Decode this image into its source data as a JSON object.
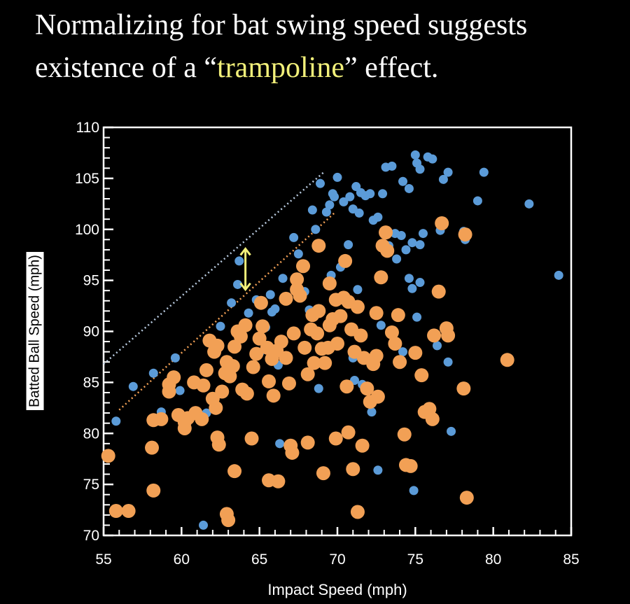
{
  "title": {
    "line1": "Normalizing for bat swing speed suggests",
    "line2_prefix": "existence of a “",
    "line2_highlight": "trampoline",
    "line2_suffix": "” effect."
  },
  "colors": {
    "background": "#000000",
    "highlight_text": "#f2f07a",
    "blue_points": "#5b9bd8",
    "orange_points": "#f2a055",
    "arrow": "#f2f07a"
  },
  "chart_data": {
    "type": "scatter",
    "xlabel": "Impact Speed (mph)",
    "ylabel": "Batted Ball Speed (mph)",
    "xlim": [
      55,
      85
    ],
    "ylim": [
      70,
      110
    ],
    "x_ticks": [
      "55",
      "60",
      "65",
      "70",
      "75",
      "80",
      "85"
    ],
    "y_ticks": [
      "70",
      "75",
      "80",
      "85",
      "90",
      "95",
      "100",
      "105",
      "110"
    ],
    "grid": false,
    "legend": "none",
    "series": [
      {
        "color": "#5b9bd8",
        "points": [
          [
            55.8,
            81.2
          ],
          [
            56.9,
            84.6
          ],
          [
            58.7,
            82.1
          ],
          [
            58.2,
            85.9
          ],
          [
            59.6,
            87.4
          ],
          [
            59.9,
            84.2
          ],
          [
            61.6,
            82.0
          ],
          [
            61.4,
            71.0
          ],
          [
            62.5,
            90.5
          ],
          [
            63.2,
            92.8
          ],
          [
            63.6,
            94.6
          ],
          [
            63.7,
            96.9
          ],
          [
            64.3,
            91.8
          ],
          [
            64.8,
            93.1
          ],
          [
            65.0,
            87.9
          ],
          [
            65.4,
            90.4
          ],
          [
            65.8,
            91.9
          ],
          [
            66.0,
            92.2
          ],
          [
            65.7,
            93.6
          ],
          [
            66.5,
            95.2
          ],
          [
            66.2,
            86.7
          ],
          [
            66.3,
            79.0
          ],
          [
            67.2,
            99.2
          ],
          [
            67.5,
            97.6
          ],
          [
            67.9,
            93.9
          ],
          [
            68.2,
            92.1
          ],
          [
            68.6,
            100.0
          ],
          [
            68.4,
            101.9
          ],
          [
            68.9,
            104.5
          ],
          [
            69.3,
            101.7
          ],
          [
            69.5,
            102.4
          ],
          [
            69.7,
            103.5
          ],
          [
            70.0,
            105.1
          ],
          [
            69.8,
            103.2
          ],
          [
            70.4,
            102.7
          ],
          [
            70.8,
            103.2
          ],
          [
            71.0,
            102.0
          ],
          [
            71.2,
            104.2
          ],
          [
            71.5,
            103.6
          ],
          [
            71.8,
            103.3
          ],
          [
            72.1,
            103.5
          ],
          [
            71.4,
            101.6
          ],
          [
            72.3,
            100.9
          ],
          [
            72.6,
            101.2
          ],
          [
            72.9,
            103.5
          ],
          [
            73.1,
            106.1
          ],
          [
            73.5,
            106.2
          ],
          [
            73.3,
            98.4
          ],
          [
            73.7,
            99.6
          ],
          [
            74.1,
            99.4
          ],
          [
            74.4,
            98.0
          ],
          [
            74.8,
            98.7
          ],
          [
            75.3,
            98.5
          ],
          [
            74.2,
            104.7
          ],
          [
            74.6,
            104.0
          ],
          [
            75.0,
            107.3
          ],
          [
            75.1,
            106.5
          ],
          [
            75.3,
            105.9
          ],
          [
            75.5,
            99.6
          ],
          [
            75.8,
            107.1
          ],
          [
            76.1,
            106.9
          ],
          [
            76.6,
            99.9
          ],
          [
            76.8,
            104.9
          ],
          [
            77.1,
            105.6
          ],
          [
            78.1,
            99.8
          ],
          [
            78.2,
            99.0
          ],
          [
            79.0,
            102.8
          ],
          [
            79.4,
            105.6
          ],
          [
            82.3,
            102.5
          ],
          [
            84.2,
            95.5
          ],
          [
            73.8,
            97.1
          ],
          [
            74.6,
            95.2
          ],
          [
            74.8,
            94.2
          ],
          [
            75.1,
            91.4
          ],
          [
            75.3,
            94.8
          ],
          [
            74.2,
            88.0
          ],
          [
            72.8,
            90.6
          ],
          [
            71.3,
            94.1
          ],
          [
            71.0,
            87.4
          ],
          [
            71.1,
            85.2
          ],
          [
            71.6,
            84.8
          ],
          [
            72.2,
            82.1
          ],
          [
            72.6,
            76.4
          ],
          [
            74.9,
            74.4
          ],
          [
            76.4,
            88.6
          ],
          [
            77.1,
            87.0
          ],
          [
            77.3,
            80.2
          ],
          [
            68.8,
            84.4
          ],
          [
            69.6,
            95.5
          ],
          [
            70.2,
            96.3
          ],
          [
            70.7,
            98.5
          ]
        ]
      },
      {
        "color": "#f2a055",
        "points": [
          [
            55.3,
            77.8
          ],
          [
            55.8,
            72.4
          ],
          [
            56.6,
            72.4
          ],
          [
            58.1,
            78.6
          ],
          [
            58.2,
            74.4
          ],
          [
            58.7,
            81.4
          ],
          [
            59.2,
            84.8
          ],
          [
            59.5,
            85.5
          ],
          [
            59.8,
            81.8
          ],
          [
            60.2,
            80.5
          ],
          [
            60.4,
            81.5
          ],
          [
            60.9,
            82.0
          ],
          [
            61.3,
            81.4
          ],
          [
            60.8,
            85.0
          ],
          [
            61.4,
            84.7
          ],
          [
            61.6,
            86.2
          ],
          [
            62.1,
            88.0
          ],
          [
            62.0,
            83.4
          ],
          [
            62.2,
            82.5
          ],
          [
            62.3,
            79.6
          ],
          [
            62.4,
            78.9
          ],
          [
            62.6,
            84.1
          ],
          [
            62.8,
            85.9
          ],
          [
            62.9,
            87.0
          ],
          [
            63.0,
            86.3
          ],
          [
            63.1,
            85.6
          ],
          [
            63.3,
            86.6
          ],
          [
            63.4,
            88.5
          ],
          [
            63.6,
            90.0
          ],
          [
            63.8,
            89.5
          ],
          [
            63.9,
            84.3
          ],
          [
            64.2,
            83.9
          ],
          [
            63.0,
            71.5
          ],
          [
            62.9,
            72.1
          ],
          [
            63.4,
            76.3
          ],
          [
            64.5,
            79.5
          ],
          [
            64.8,
            87.8
          ],
          [
            65.0,
            89.3
          ],
          [
            65.2,
            90.5
          ],
          [
            65.5,
            88.4
          ],
          [
            65.6,
            85.1
          ],
          [
            65.1,
            92.8
          ],
          [
            65.8,
            87.3
          ],
          [
            66.1,
            88.1
          ],
          [
            66.4,
            89.0
          ],
          [
            66.7,
            87.4
          ],
          [
            66.9,
            84.9
          ],
          [
            66.2,
            75.3
          ],
          [
            67.2,
            89.8
          ],
          [
            67.4,
            94.1
          ],
          [
            67.6,
            93.5
          ],
          [
            67.8,
            96.4
          ],
          [
            67.9,
            88.4
          ],
          [
            68.1,
            85.8
          ],
          [
            68.3,
            90.2
          ],
          [
            68.4,
            91.6
          ],
          [
            68.5,
            86.9
          ],
          [
            68.7,
            89.8
          ],
          [
            68.8,
            92.0
          ],
          [
            69.0,
            88.3
          ],
          [
            69.2,
            86.9
          ],
          [
            69.4,
            88.4
          ],
          [
            69.5,
            90.6
          ],
          [
            69.7,
            91.2
          ],
          [
            69.9,
            93.1
          ],
          [
            70.0,
            88.8
          ],
          [
            70.2,
            91.5
          ],
          [
            70.4,
            93.3
          ],
          [
            70.5,
            96.9
          ],
          [
            70.7,
            92.9
          ],
          [
            70.9,
            90.2
          ],
          [
            71.1,
            88.0
          ],
          [
            71.3,
            92.4
          ],
          [
            71.5,
            89.6
          ],
          [
            71.7,
            87.4
          ],
          [
            71.9,
            84.4
          ],
          [
            72.1,
            83.1
          ],
          [
            72.3,
            86.8
          ],
          [
            72.5,
            87.6
          ],
          [
            72.6,
            83.6
          ],
          [
            72.8,
            95.3
          ],
          [
            72.9,
            98.4
          ],
          [
            73.1,
            99.7
          ],
          [
            73.2,
            97.9
          ],
          [
            73.5,
            89.9
          ],
          [
            73.7,
            88.8
          ],
          [
            74.0,
            87.0
          ],
          [
            74.3,
            79.9
          ],
          [
            74.4,
            76.9
          ],
          [
            74.7,
            76.8
          ],
          [
            75.0,
            87.9
          ],
          [
            75.4,
            85.7
          ],
          [
            75.6,
            82.1
          ],
          [
            75.9,
            82.4
          ],
          [
            76.1,
            81.4
          ],
          [
            76.2,
            89.6
          ],
          [
            76.5,
            93.9
          ],
          [
            76.7,
            100.6
          ],
          [
            77.0,
            90.3
          ],
          [
            77.1,
            89.6
          ],
          [
            78.1,
            84.4
          ],
          [
            78.2,
            99.5
          ],
          [
            78.3,
            73.7
          ],
          [
            80.9,
            87.2
          ],
          [
            67.0,
            78.8
          ],
          [
            67.1,
            78.1
          ],
          [
            68.1,
            79.1
          ],
          [
            69.1,
            76.1
          ],
          [
            69.9,
            79.5
          ],
          [
            70.7,
            80.1
          ],
          [
            71.0,
            76.5
          ],
          [
            71.6,
            78.8
          ],
          [
            71.3,
            72.3
          ],
          [
            65.6,
            75.4
          ],
          [
            60.2,
            81.1
          ],
          [
            59.2,
            84.1
          ],
          [
            58.2,
            81.3
          ],
          [
            61.8,
            89.1
          ],
          [
            62.3,
            88.6
          ],
          [
            64.1,
            90.6
          ],
          [
            66.7,
            93.2
          ],
          [
            67.4,
            95.1
          ],
          [
            68.8,
            98.4
          ],
          [
            69.5,
            94.7
          ],
          [
            72.5,
            91.8
          ],
          [
            73.9,
            91.6
          ],
          [
            64.6,
            86.5
          ],
          [
            65.9,
            83.7
          ],
          [
            70.6,
            84.6
          ]
        ]
      }
    ],
    "annotations": {
      "blue_boundary_line": [
        [
          55.0,
          86.8
        ],
        [
          69.2,
          105.7
        ]
      ],
      "orange_boundary_line": [
        [
          56.0,
          82.3
        ],
        [
          69.8,
          101.6
        ]
      ],
      "arrow": {
        "x": 64.1,
        "y_from": 94.1,
        "y_to": 98.1
      }
    }
  }
}
